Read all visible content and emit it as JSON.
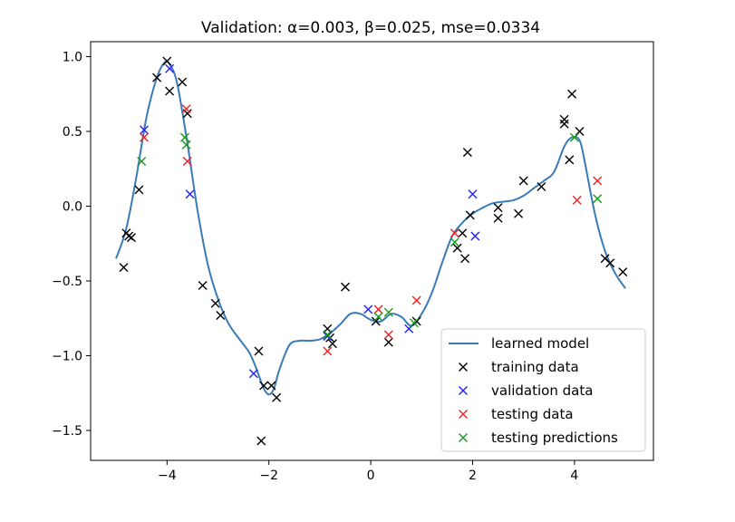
{
  "chart_data": {
    "type": "scatter",
    "title": "Validation: α=0.003, β=0.025, mse=0.0334",
    "xlabel": "",
    "ylabel": "",
    "xlim": [
      -5.5,
      5.55
    ],
    "ylim": [
      -1.7,
      1.1
    ],
    "xticks": [
      -4,
      -2,
      0,
      2,
      4
    ],
    "xtick_labels": [
      "−4",
      "−2",
      "0",
      "2",
      "4"
    ],
    "yticks": [
      1.0,
      0.5,
      0.0,
      -0.5,
      -1.0,
      -1.5
    ],
    "ytick_labels": [
      "1.0",
      "0.5",
      "0.0",
      "−0.5",
      "−1.0",
      "−1.5"
    ],
    "grid": false,
    "legend_position": "lower-right",
    "legend": [
      {
        "label": "learned model",
        "marker": "line",
        "color": "#3a7ab5"
      },
      {
        "label": "training data",
        "marker": "x",
        "color": "#000000"
      },
      {
        "label": "validation data",
        "marker": "x",
        "color": "#2020ff"
      },
      {
        "label": "testing data",
        "marker": "x",
        "color": "#ee2222"
      },
      {
        "label": "testing predictions",
        "marker": "x",
        "color": "#1a9a1a"
      }
    ],
    "model_curve": {
      "x": [
        -5.0,
        -4.8,
        -4.6,
        -4.4,
        -4.2,
        -4.05,
        -3.95,
        -3.8,
        -3.6,
        -3.4,
        -3.2,
        -3.0,
        -2.8,
        -2.6,
        -2.4,
        -2.3,
        -2.2,
        -2.1,
        -2.0,
        -1.9,
        -1.8,
        -1.6,
        -1.4,
        -1.2,
        -1.0,
        -0.8,
        -0.6,
        -0.4,
        -0.2,
        0.0,
        0.2,
        0.4,
        0.6,
        0.8,
        1.0,
        1.2,
        1.4,
        1.6,
        1.8,
        2.0,
        2.2,
        2.4,
        2.6,
        2.8,
        3.0,
        3.2,
        3.4,
        3.6,
        3.8,
        3.95,
        4.1,
        4.2,
        4.4,
        4.6,
        4.8,
        5.0
      ],
      "y": [
        -0.35,
        -0.15,
        0.2,
        0.6,
        0.86,
        0.96,
        0.95,
        0.82,
        0.42,
        -0.03,
        -0.39,
        -0.62,
        -0.78,
        -0.88,
        -0.97,
        -1.04,
        -1.13,
        -1.22,
        -1.26,
        -1.22,
        -1.1,
        -0.93,
        -0.9,
        -0.9,
        -0.89,
        -0.85,
        -0.79,
        -0.72,
        -0.72,
        -0.76,
        -0.77,
        -0.72,
        -0.74,
        -0.8,
        -0.72,
        -0.58,
        -0.38,
        -0.2,
        -0.11,
        -0.05,
        -0.01,
        0.02,
        0.03,
        0.04,
        0.07,
        0.12,
        0.17,
        0.23,
        0.4,
        0.46,
        0.44,
        0.3,
        -0.05,
        -0.3,
        -0.45,
        -0.55
      ]
    },
    "series": [
      {
        "name": "training data",
        "color": "#000000",
        "x": [
          -4.8,
          -4.75,
          -4.7,
          -4.85,
          -4.55,
          -4.2,
          -4.0,
          -3.95,
          -3.7,
          -3.6,
          -3.3,
          -3.05,
          -2.95,
          -2.2,
          -2.1,
          -1.95,
          -1.85,
          -2.15,
          -0.85,
          -0.8,
          -0.75,
          -0.5,
          0.1,
          0.35,
          0.9,
          1.7,
          1.8,
          1.85,
          1.9,
          1.95,
          2.5,
          2.5,
          2.9,
          3.0,
          3.35,
          3.8,
          3.8,
          3.9,
          3.95,
          4.1,
          4.6,
          4.7,
          4.95
        ],
        "y": [
          -0.18,
          -0.2,
          -0.21,
          -0.41,
          0.11,
          0.86,
          0.97,
          0.77,
          0.83,
          0.62,
          -0.53,
          -0.65,
          -0.73,
          -0.97,
          -1.2,
          -1.2,
          -1.28,
          -1.57,
          -0.82,
          -0.88,
          -0.92,
          -0.54,
          -0.77,
          -0.91,
          -0.77,
          -0.28,
          -0.18,
          -0.35,
          0.36,
          -0.06,
          -0.08,
          -0.01,
          -0.05,
          0.17,
          0.13,
          0.55,
          0.58,
          0.31,
          0.75,
          0.5,
          -0.35,
          -0.38,
          -0.44
        ]
      },
      {
        "name": "validation data",
        "color": "#2020ff",
        "x": [
          -4.45,
          -3.95,
          -3.55,
          -2.3,
          -0.85,
          -0.05,
          0.75,
          2.0,
          2.05
        ],
        "y": [
          0.51,
          0.92,
          0.08,
          -1.12,
          -0.87,
          -0.69,
          -0.82,
          0.08,
          -0.2
        ]
      },
      {
        "name": "testing data",
        "color": "#ee2222",
        "x": [
          -4.45,
          -3.62,
          -3.6,
          -0.85,
          0.15,
          0.35,
          0.9,
          1.65,
          4.05,
          4.45
        ],
        "y": [
          0.46,
          0.65,
          0.3,
          -0.97,
          -0.69,
          -0.86,
          -0.63,
          -0.18,
          0.04,
          0.17
        ]
      },
      {
        "name": "testing predictions",
        "color": "#1a9a1a",
        "x": [
          -4.5,
          -3.65,
          -3.62,
          -0.85,
          0.15,
          0.35,
          0.85,
          1.65,
          4.0,
          4.45
        ],
        "y": [
          0.3,
          0.46,
          0.41,
          -0.86,
          -0.74,
          -0.71,
          -0.78,
          -0.24,
          0.46,
          0.05
        ]
      }
    ]
  }
}
